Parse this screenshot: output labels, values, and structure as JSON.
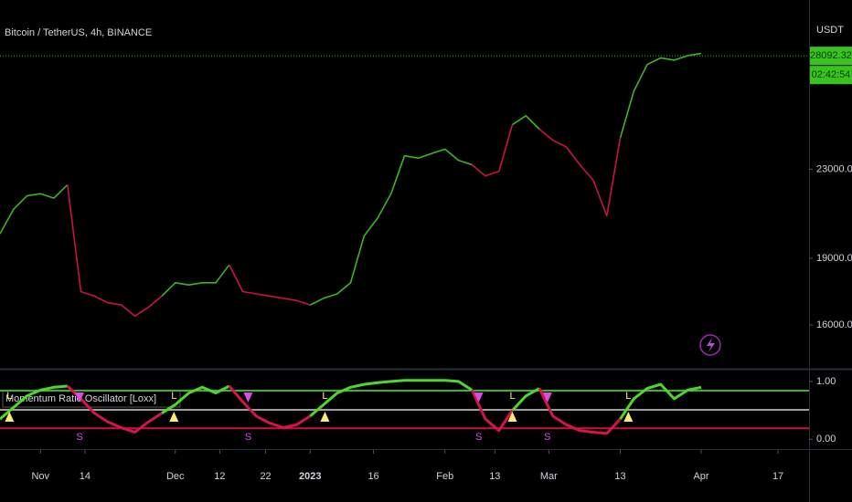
{
  "chart_data": [
    {
      "type": "line",
      "title": "Bitcoin / TetherUS, 4h, BINANCE",
      "y_axis_label": "USDT",
      "xlim": [
        0,
        60
      ],
      "xticks": [
        {
          "value": 3,
          "label": "Nov"
        },
        {
          "value": 6.3,
          "label": "14"
        },
        {
          "value": 13,
          "label": "Dec"
        },
        {
          "value": 16.3,
          "label": "12"
        },
        {
          "value": 19.7,
          "label": "22"
        },
        {
          "value": 23,
          "label": "2023"
        },
        {
          "value": 27.7,
          "label": "16"
        },
        {
          "value": 33,
          "label": "Feb"
        },
        {
          "value": 36.7,
          "label": "13"
        },
        {
          "value": 40.7,
          "label": "Mar"
        },
        {
          "value": 46,
          "label": "13"
        },
        {
          "value": 52,
          "label": "Apr"
        },
        {
          "value": 57.7,
          "label": "17"
        }
      ],
      "ylim": [
        14200,
        30600
      ],
      "yticks": [
        {
          "value": 16000,
          "label": "16000.00"
        },
        {
          "value": 19000,
          "label": "19000.00"
        },
        {
          "value": 23000,
          "label": "23000.00"
        }
      ],
      "last_price": {
        "value": 28092.32,
        "label": "28092.32"
      },
      "countdown": "02:42:54",
      "series": [
        {
          "color": "#3cb521",
          "values": [
            20100,
            21200,
            21800,
            21900,
            21700,
            22300,
            null,
            null,
            null,
            null,
            null,
            null,
            17300,
            17900,
            17800,
            17900,
            17900,
            18700,
            null,
            null,
            null,
            null,
            null,
            16900,
            17200,
            17400,
            17900,
            20000,
            20800,
            21900,
            23600,
            23500,
            23700,
            23900,
            23400,
            23200,
            null,
            null,
            25000,
            25400,
            24800,
            null,
            null,
            null,
            null,
            null,
            24400,
            26500,
            27700,
            28000,
            27900,
            28100,
            28200
          ]
        },
        {
          "color": "#c8143c",
          "values": [
            20100,
            null,
            null,
            null,
            null,
            22300,
            17500,
            17300,
            17000,
            16900,
            16400,
            16800,
            17300,
            null,
            null,
            null,
            null,
            18700,
            17500,
            17400,
            17300,
            17200,
            17100,
            16900,
            null,
            null,
            null,
            null,
            null,
            null,
            null,
            null,
            null,
            null,
            null,
            23200,
            22700,
            22900,
            25000,
            null,
            24800,
            24300,
            24000,
            23200,
            22500,
            20900,
            24400,
            null,
            null,
            null,
            null,
            null,
            null
          ]
        }
      ]
    },
    {
      "type": "line",
      "title": "Momentum Ratio Oscillator [Loxx]",
      "xlim": [
        0,
        60
      ],
      "ylim": [
        -0.17,
        1.22
      ],
      "yticks": [
        {
          "value": 1,
          "label": "1.00"
        },
        {
          "value": 0,
          "label": "0.00"
        }
      ],
      "levels": [
        {
          "value": 0.84,
          "color": "#3cb521"
        },
        {
          "value": 0.51,
          "color": "#9e9e9e"
        },
        {
          "value": 0.19,
          "color": "#c8143c"
        }
      ],
      "signals": [
        {
          "x": 0.7,
          "label": "L"
        },
        {
          "x": 5.9,
          "label": "S"
        },
        {
          "x": 12.9,
          "label": "L"
        },
        {
          "x": 18.4,
          "label": "S"
        },
        {
          "x": 24.1,
          "label": "L"
        },
        {
          "x": 35.5,
          "label": "S"
        },
        {
          "x": 38,
          "label": "L"
        },
        {
          "x": 40.6,
          "label": "S"
        },
        {
          "x": 46.6,
          "label": "L"
        }
      ],
      "series": [
        {
          "color": "#4fd62a",
          "values": [
            0.35,
            0.55,
            0.75,
            0.85,
            0.9,
            0.92,
            null,
            null,
            null,
            null,
            null,
            null,
            0.45,
            0.6,
            0.8,
            0.9,
            0.8,
            0.92,
            null,
            null,
            null,
            null,
            null,
            0.4,
            0.6,
            0.8,
            0.9,
            0.95,
            0.98,
            1.0,
            1.02,
            1.02,
            1.02,
            1.02,
            1.0,
            0.85,
            null,
            null,
            0.5,
            0.75,
            0.88,
            null,
            null,
            null,
            null,
            null,
            0.35,
            0.7,
            0.88,
            0.95,
            0.7,
            0.85,
            0.9
          ]
        },
        {
          "color": "#d4144a",
          "values": [
            0.35,
            null,
            null,
            null,
            null,
            0.92,
            0.7,
            0.45,
            0.3,
            0.2,
            0.12,
            0.3,
            0.45,
            null,
            null,
            null,
            null,
            0.92,
            0.65,
            0.4,
            0.28,
            0.2,
            0.25,
            0.4,
            null,
            null,
            null,
            null,
            null,
            null,
            null,
            null,
            null,
            null,
            null,
            0.85,
            0.35,
            0.15,
            0.5,
            null,
            0.88,
            0.4,
            0.25,
            0.15,
            0.12,
            0.1,
            0.35,
            null,
            null,
            null,
            null,
            null,
            null
          ]
        }
      ]
    }
  ]
}
